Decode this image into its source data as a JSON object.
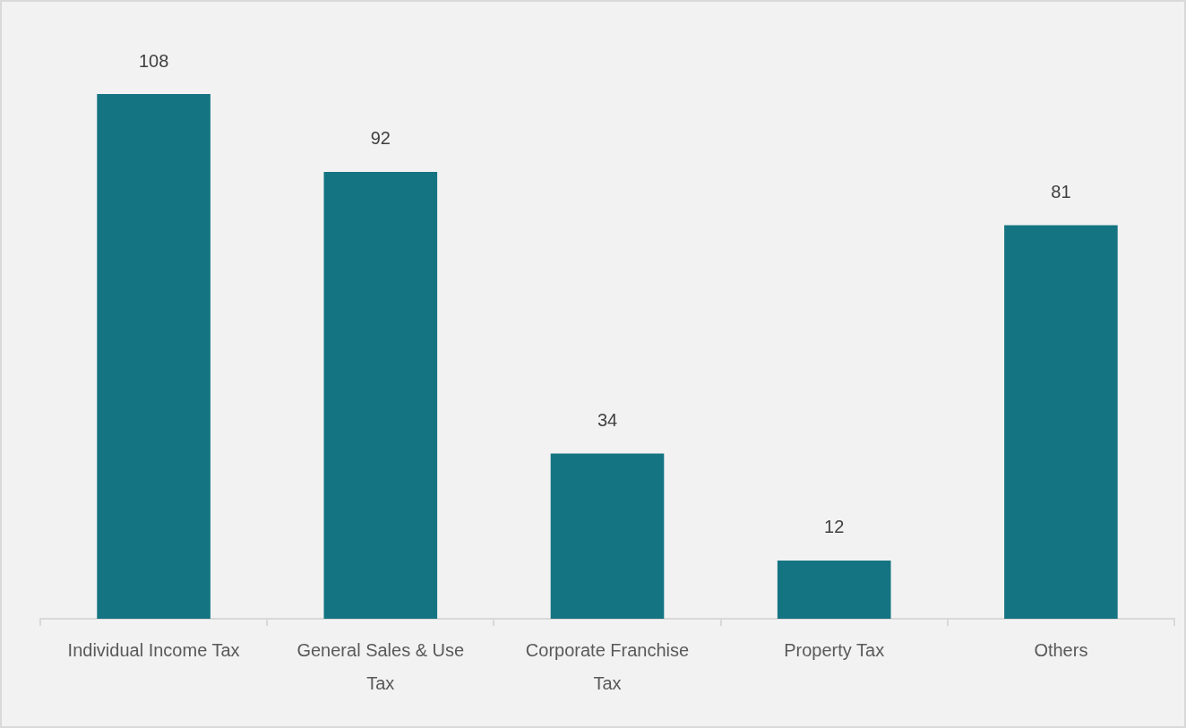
{
  "chart_data": {
    "type": "bar",
    "categories": [
      "Individual Income Tax",
      "General Sales & Use Tax",
      "Corporate Franchise Tax",
      "Property Tax",
      "Others"
    ],
    "values": [
      108,
      92,
      34,
      12,
      81
    ],
    "color": "#157482",
    "data_labels": true
  }
}
